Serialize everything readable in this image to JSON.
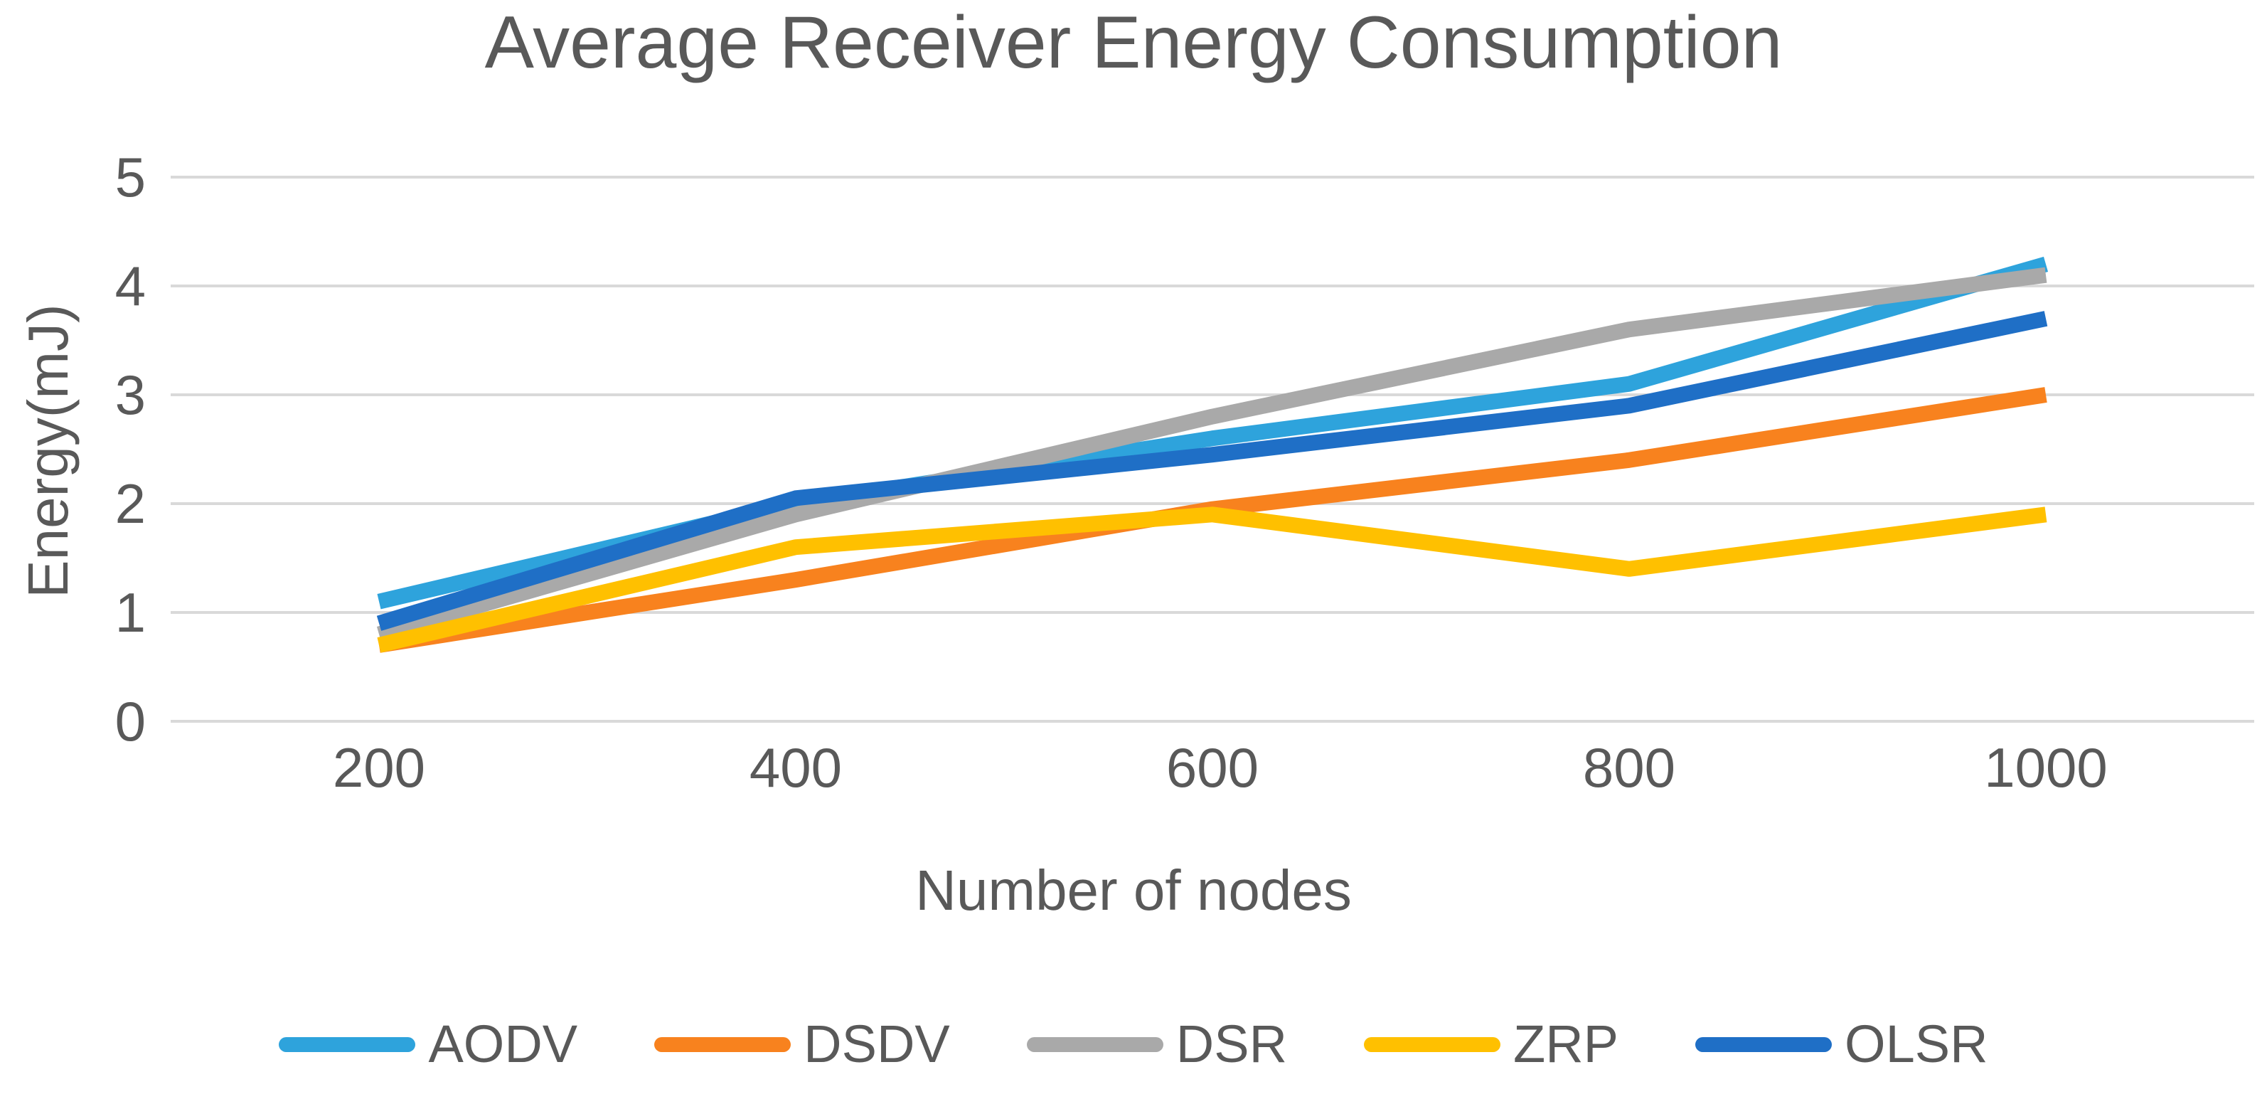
{
  "title": "Average Receiver Energy Consumption",
  "chart_data": {
    "type": "line",
    "title": "Average Receiver Energy Consumption",
    "xlabel": "Number of nodes",
    "ylabel": "Energy(mJ)",
    "categories": [
      "200",
      "400",
      "600",
      "800",
      "1000"
    ],
    "yticks": [
      0,
      1,
      2,
      3,
      4,
      5
    ],
    "ylim": [
      0,
      5
    ],
    "grid": true,
    "legend_position": "bottom",
    "colors": {
      "grid": "#D9D9D9",
      "text": "#595959"
    },
    "series": [
      {
        "name": "AODV",
        "color": "#2EA3DC",
        "values": [
          1.1,
          2.0,
          2.6,
          3.1,
          4.2
        ]
      },
      {
        "name": "DSDV",
        "color": "#F8821E",
        "values": [
          0.7,
          1.3,
          1.95,
          2.4,
          3.0
        ]
      },
      {
        "name": "DSR",
        "color": "#A9A9A9",
        "values": [
          0.8,
          1.9,
          2.8,
          3.6,
          4.1
        ]
      },
      {
        "name": "ZRP",
        "color": "#FFC000",
        "values": [
          0.7,
          1.6,
          1.9,
          1.4,
          1.9
        ]
      },
      {
        "name": "OLSR",
        "color": "#1F6FC6",
        "values": [
          0.9,
          2.05,
          2.45,
          2.9,
          3.7
        ]
      }
    ]
  }
}
